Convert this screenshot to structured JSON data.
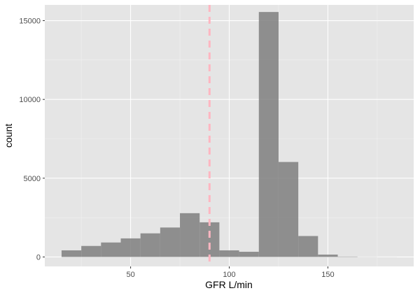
{
  "chart_data": {
    "type": "bar",
    "xlabel": "GFR L/min",
    "ylabel": "count",
    "xlim": [
      6.5,
      193.5
    ],
    "ylim": [
      -600,
      16000
    ],
    "x_ticks": [
      50,
      100,
      150
    ],
    "y_ticks": [
      0,
      5000,
      10000,
      15000
    ],
    "x_tick_labels": [
      "50",
      "100",
      "150"
    ],
    "y_tick_labels": [
      "0",
      "5000",
      "10000",
      "15000"
    ],
    "grid": true,
    "bins": [
      {
        "x0": 15,
        "x1": 25,
        "count": 420
      },
      {
        "x0": 25,
        "x1": 35,
        "count": 700
      },
      {
        "x0": 35,
        "x1": 45,
        "count": 920
      },
      {
        "x0": 45,
        "x1": 55,
        "count": 1180
      },
      {
        "x0": 55,
        "x1": 65,
        "count": 1500
      },
      {
        "x0": 65,
        "x1": 75,
        "count": 1870
      },
      {
        "x0": 75,
        "x1": 85,
        "count": 2780
      },
      {
        "x0": 85,
        "x1": 95,
        "count": 2200
      },
      {
        "x0": 95,
        "x1": 105,
        "count": 420
      },
      {
        "x0": 105,
        "x1": 115,
        "count": 330
      },
      {
        "x0": 115,
        "x1": 125,
        "count": 15550
      },
      {
        "x0": 125,
        "x1": 135,
        "count": 6030
      },
      {
        "x0": 135,
        "x1": 145,
        "count": 1330
      },
      {
        "x0": 145,
        "x1": 155,
        "count": 150
      },
      {
        "x0": 155,
        "x1": 165,
        "count": 25
      },
      {
        "x0": 165,
        "x1": 175,
        "count": 8
      },
      {
        "x0": 175,
        "x1": 185,
        "count": 3
      }
    ],
    "reference_line": {
      "x": 90,
      "style": "dashed",
      "color": "#ffb6c1"
    },
    "colors": {
      "panel": "#e5e5e5",
      "grid_major": "#ffffff",
      "grid_minor": "#f2f2f2",
      "bar": "#7f7f7f",
      "axis_text": "#4d4d4d",
      "label_text": "#000000"
    }
  }
}
